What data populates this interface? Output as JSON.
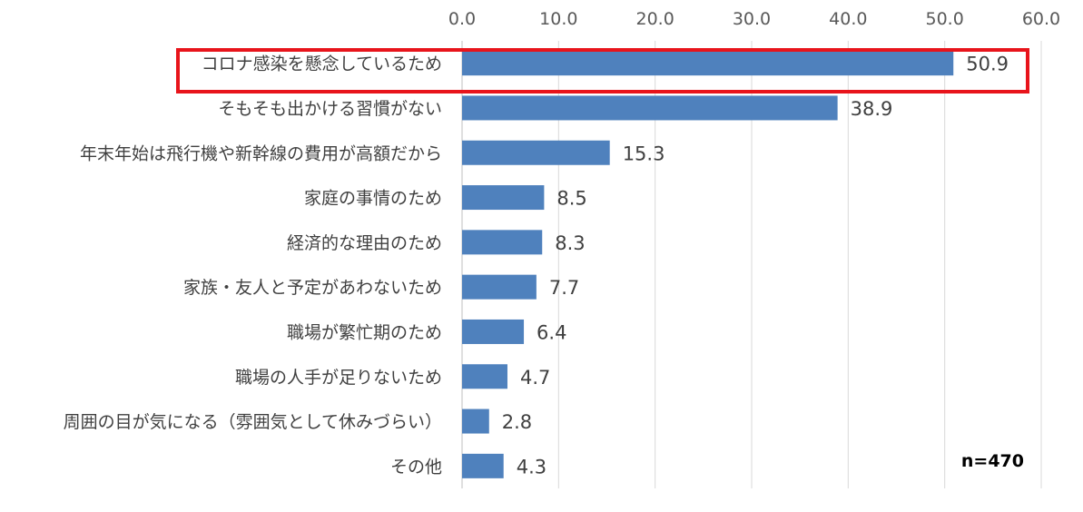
{
  "chart_data": {
    "type": "bar",
    "orientation": "horizontal",
    "categories": [
      "コロナ感染を懸念しているため",
      "そもそも出かける習慣がない",
      "年末年始は飛行機や新幹線の費用が高額だから",
      "家庭の事情のため",
      "経済的な理由のため",
      "家族・友人と予定があわないため",
      "職場が繁忙期のため",
      "職場の人手が足りないため",
      "周囲の目が気になる（雰囲気として休みづらい）",
      "その他"
    ],
    "values": [
      50.9,
      38.9,
      15.3,
      8.5,
      8.3,
      7.7,
      6.4,
      4.7,
      2.8,
      4.3
    ],
    "value_labels": [
      "50.9",
      "38.9",
      "15.3",
      "8.5",
      "8.3",
      "7.7",
      "6.4",
      "4.7",
      "2.8",
      "4.3"
    ],
    "xlim": [
      0,
      60
    ],
    "xticks": [
      "0.0",
      "10.0",
      "20.0",
      "30.0",
      "40.0",
      "50.0",
      "60.0"
    ],
    "x_axis_position": "top",
    "grid": true,
    "bar_color": "#4f81bd",
    "grid_color": "#d9d9d9",
    "highlight_color": "#e8141b",
    "highlighted_category_index": 0,
    "annotation": "n=470"
  }
}
